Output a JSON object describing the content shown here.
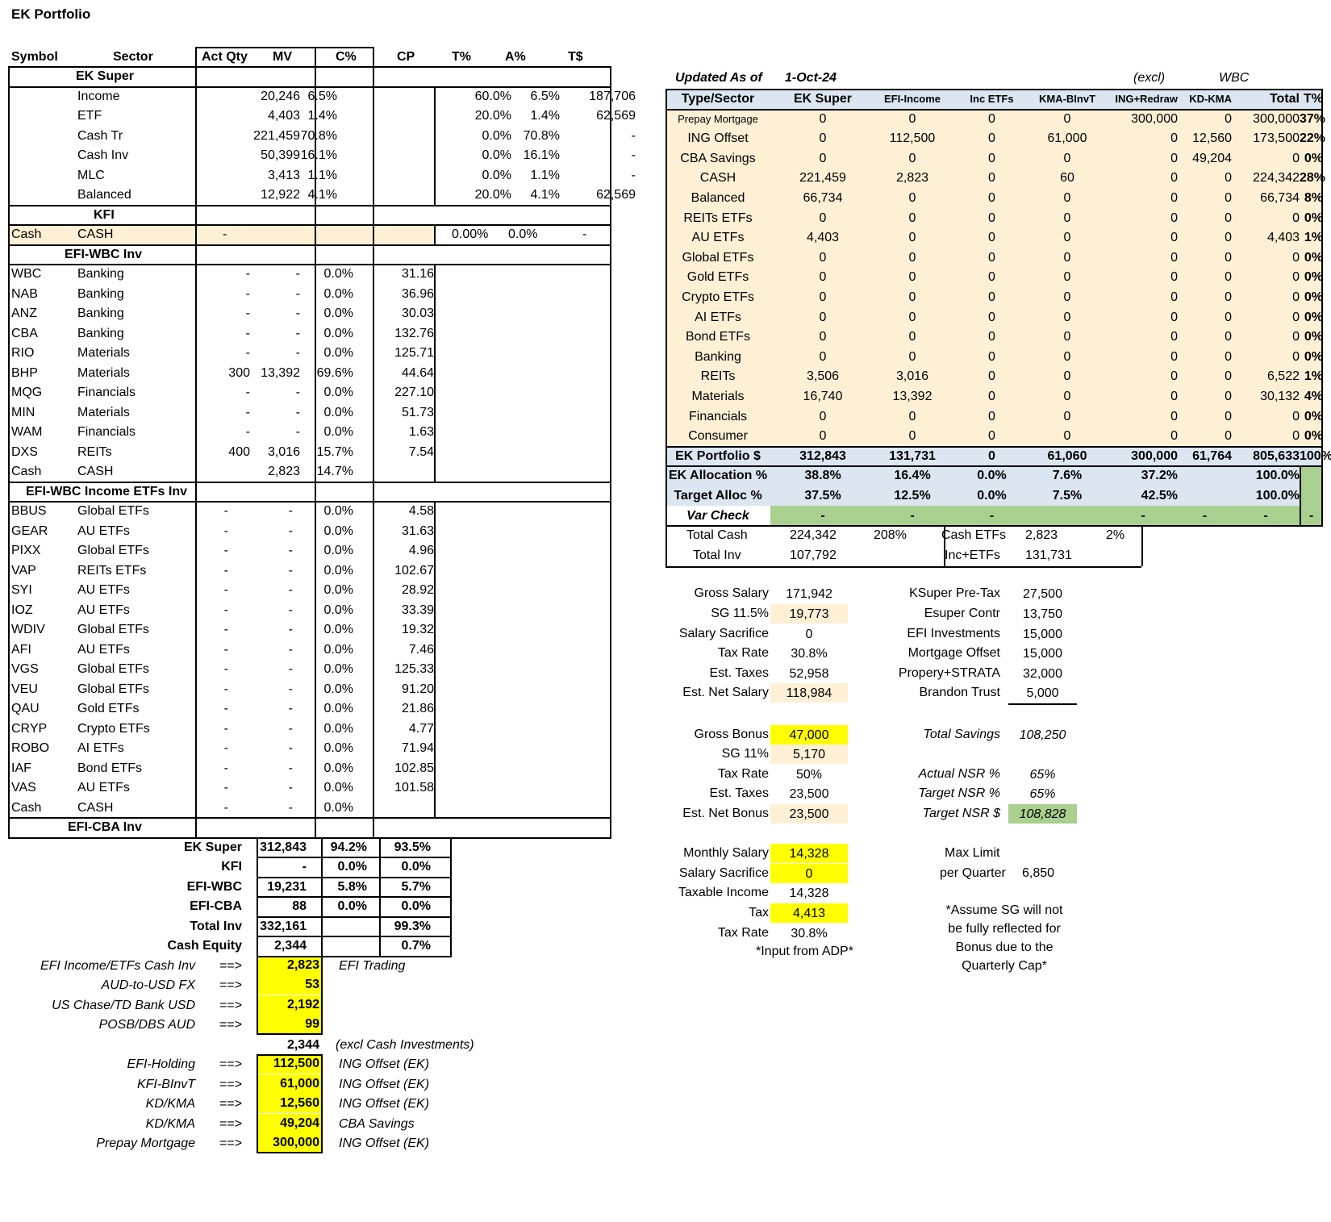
{
  "title": "EK Portfolio",
  "left_headers": [
    "Symbol",
    "Sector",
    "Act Qty",
    "MV",
    "C%",
    "CP",
    "T%",
    "A%",
    "T$"
  ],
  "super": {
    "title": "EK Super",
    "rows": [
      {
        "sector": "Income",
        "mv": "20,246",
        "cp": "6.5%",
        "tp": "60.0%",
        "ap": "6.5%",
        "ts": "187,706"
      },
      {
        "sector": "ETF",
        "mv": "4,403",
        "cp": "1.4%",
        "tp": "20.0%",
        "ap": "1.4%",
        "ts": "62,569"
      },
      {
        "sector": "Cash Tr",
        "mv": "221,459",
        "cp": "70.8%",
        "tp": "0.0%",
        "ap": "70.8%",
        "ts": "-"
      },
      {
        "sector": "Cash Inv",
        "mv": "50,399",
        "cp": "16.1%",
        "tp": "0.0%",
        "ap": "16.1%",
        "ts": "-"
      },
      {
        "sector": "MLC",
        "mv": "3,413",
        "cp": "1.1%",
        "tp": "0.0%",
        "ap": "1.1%",
        "ts": "-"
      },
      {
        "sector": "Balanced",
        "mv": "12,922",
        "cp": "4.1%",
        "tp": "20.0%",
        "ap": "4.1%",
        "ts": "62,569"
      }
    ]
  },
  "kfi": {
    "title": "KFI",
    "row": {
      "sym": "Cash",
      "sector": "CASH",
      "qty": "-",
      "tp": "0.00%",
      "ap": "0.0%",
      "ts": "-"
    }
  },
  "wbc": {
    "title": "EFI-WBC Inv",
    "rows": [
      {
        "sym": "WBC",
        "sector": "Banking",
        "qty": "-",
        "mv": "-",
        "cpp": "0.0%",
        "cp": "31.16"
      },
      {
        "sym": "NAB",
        "sector": "Banking",
        "qty": "-",
        "mv": "-",
        "cpp": "0.0%",
        "cp": "36.96"
      },
      {
        "sym": "ANZ",
        "sector": "Banking",
        "qty": "-",
        "mv": "-",
        "cpp": "0.0%",
        "cp": "30.03"
      },
      {
        "sym": "CBA",
        "sector": "Banking",
        "qty": "-",
        "mv": "-",
        "cpp": "0.0%",
        "cp": "132.76"
      },
      {
        "sym": "RIO",
        "sector": "Materials",
        "qty": "-",
        "mv": "-",
        "cpp": "0.0%",
        "cp": "125.71"
      },
      {
        "sym": "BHP",
        "sector": "Materials",
        "qty": "300",
        "mv": "13,392",
        "cpp": "69.6%",
        "cp": "44.64"
      },
      {
        "sym": "MQG",
        "sector": "Financials",
        "qty": "-",
        "mv": "-",
        "cpp": "0.0%",
        "cp": "227.10"
      },
      {
        "sym": "MIN",
        "sector": "Materials",
        "qty": "-",
        "mv": "-",
        "cpp": "0.0%",
        "cp": "51.73"
      },
      {
        "sym": "WAM",
        "sector": "Financials",
        "qty": "-",
        "mv": "-",
        "cpp": "0.0%",
        "cp": "1.63"
      },
      {
        "sym": "DXS",
        "sector": "REITs",
        "qty": "400",
        "mv": "3,016",
        "cpp": "15.7%",
        "cp": "7.54"
      },
      {
        "sym": "Cash",
        "sector": "CASH",
        "qty": "",
        "mv": "2,823",
        "cpp": "14.7%",
        "cp": ""
      }
    ]
  },
  "etf": {
    "title": "EFI-WBC Income ETFs Inv",
    "rows": [
      {
        "sym": "BBUS",
        "sector": "Global ETFs",
        "cp": "4.58"
      },
      {
        "sym": "GEAR",
        "sector": "AU ETFs",
        "cp": "31.63"
      },
      {
        "sym": "PIXX",
        "sector": "Global ETFs",
        "cp": "4.96"
      },
      {
        "sym": "VAP",
        "sector": "REITs ETFs",
        "cp": "102.67"
      },
      {
        "sym": "SYI",
        "sector": "AU ETFs",
        "cp": "28.92"
      },
      {
        "sym": "IOZ",
        "sector": "AU ETFs",
        "cp": "33.39"
      },
      {
        "sym": "WDIV",
        "sector": "Global ETFs",
        "cp": "19.32"
      },
      {
        "sym": "AFI",
        "sector": "AU ETFs",
        "cp": "7.46"
      },
      {
        "sym": "VGS",
        "sector": "Global ETFs",
        "cp": "125.33"
      },
      {
        "sym": "VEU",
        "sector": "Global ETFs",
        "cp": "91.20"
      },
      {
        "sym": "QAU",
        "sector": "Gold ETFs",
        "cp": "21.86"
      },
      {
        "sym": "CRYP",
        "sector": "Crypto ETFs",
        "cp": "4.77"
      },
      {
        "sym": "ROBO",
        "sector": "AI ETFs",
        "cp": "71.94"
      },
      {
        "sym": "IAF",
        "sector": "Bond ETFs",
        "cp": "102.85"
      },
      {
        "sym": "VAS",
        "sector": "AU ETFs",
        "cp": "101.58"
      },
      {
        "sym": "Cash",
        "sector": "CASH",
        "cp": ""
      }
    ],
    "dash": "-",
    "zero": "0.0%"
  },
  "cba": {
    "title": "EFI-CBA Inv"
  },
  "summary": [
    {
      "label": "EK Super",
      "v": "312,843",
      "p1": "94.2%",
      "p2": "93.5%"
    },
    {
      "label": "KFI",
      "v": "-",
      "p1": "0.0%",
      "p2": "0.0%"
    },
    {
      "label": "EFI-WBC",
      "v": "19,231",
      "p1": "5.8%",
      "p2": "5.7%"
    },
    {
      "label": "EFI-CBA",
      "v": "88",
      "p1": "0.0%",
      "p2": "0.0%"
    },
    {
      "label": "Total Inv",
      "v": "332,161",
      "p1": "",
      "p2": "99.3%"
    },
    {
      "label": "Cash Equity",
      "v": "2,344",
      "p1": "",
      "p2": "0.7%"
    }
  ],
  "cash_items": [
    {
      "label": "EFI Income/ETFs Cash Inv",
      "arrow": "==>",
      "v": "2,823",
      "note": "EFI Trading"
    },
    {
      "label": "AUD-to-USD FX",
      "arrow": "==>",
      "v": "53",
      "note": ""
    },
    {
      "label": "US Chase/TD Bank USD",
      "arrow": "==>",
      "v": "2,192",
      "note": ""
    },
    {
      "label": "POSB/DBS AUD",
      "arrow": "==>",
      "v": "99",
      "note": ""
    }
  ],
  "cash_total": {
    "v": "2,344",
    "note": "(excl Cash Investments)"
  },
  "offset_items": [
    {
      "label": "EFI-Holding",
      "arrow": "==>",
      "v": "112,500",
      "note": "ING Offset (EK)"
    },
    {
      "label": "KFI-BInvT",
      "arrow": "==>",
      "v": "61,000",
      "note": "ING Offset (EK)"
    },
    {
      "label": "KD/KMA",
      "arrow": "==>",
      "v": "12,560",
      "note": "ING Offset (EK)"
    },
    {
      "label": "KD/KMA",
      "arrow": "==>",
      "v": "49,204",
      "note": "CBA Savings"
    },
    {
      "label": "Prepay Mortgage",
      "arrow": "==>",
      "v": "300,000",
      "note": "ING Offset (EK)"
    }
  ],
  "right": {
    "updated_label": "Updated As of",
    "updated_date": "1-Oct-24",
    "excl": "(excl)",
    "wbc": "WBC",
    "headers": [
      "Type/Sector",
      "EK Super",
      "EFI-Income",
      "Inc ETFs",
      "KMA-BInvT",
      "ING+Redraw",
      "KD-KMA",
      "Total",
      "T%"
    ],
    "rows": [
      [
        "Prepay Mortgage",
        "0",
        "0",
        "0",
        "0",
        "300,000",
        "0",
        "300,000",
        "37%"
      ],
      [
        "ING Offset",
        "0",
        "112,500",
        "0",
        "61,000",
        "0",
        "12,560",
        "173,500",
        "22%"
      ],
      [
        "CBA Savings",
        "0",
        "0",
        "0",
        "0",
        "0",
        "49,204",
        "0",
        "0%"
      ],
      [
        "CASH",
        "221,459",
        "2,823",
        "0",
        "60",
        "0",
        "0",
        "224,342",
        "28%"
      ],
      [
        "Balanced",
        "66,734",
        "0",
        "0",
        "0",
        "0",
        "0",
        "66,734",
        "8%"
      ],
      [
        "REITs ETFs",
        "0",
        "0",
        "0",
        "0",
        "0",
        "0",
        "0",
        "0%"
      ],
      [
        "AU ETFs",
        "4,403",
        "0",
        "0",
        "0",
        "0",
        "0",
        "4,403",
        "1%"
      ],
      [
        "Global ETFs",
        "0",
        "0",
        "0",
        "0",
        "0",
        "0",
        "0",
        "0%"
      ],
      [
        "Gold ETFs",
        "0",
        "0",
        "0",
        "0",
        "0",
        "0",
        "0",
        "0%"
      ],
      [
        "Crypto ETFs",
        "0",
        "0",
        "0",
        "0",
        "0",
        "0",
        "0",
        "0%"
      ],
      [
        "AI ETFs",
        "0",
        "0",
        "0",
        "0",
        "0",
        "0",
        "0",
        "0%"
      ],
      [
        "Bond ETFs",
        "0",
        "0",
        "0",
        "0",
        "0",
        "0",
        "0",
        "0%"
      ],
      [
        "Banking",
        "0",
        "0",
        "0",
        "0",
        "0",
        "0",
        "0",
        "0%"
      ],
      [
        "REITs",
        "3,506",
        "3,016",
        "0",
        "0",
        "0",
        "0",
        "6,522",
        "1%"
      ],
      [
        "Materials",
        "16,740",
        "13,392",
        "0",
        "0",
        "0",
        "0",
        "30,132",
        "4%"
      ],
      [
        "Financials",
        "0",
        "0",
        "0",
        "0",
        "0",
        "0",
        "0",
        "0%"
      ],
      [
        "Consumer",
        "0",
        "0",
        "0",
        "0",
        "0",
        "0",
        "0",
        "0%"
      ]
    ],
    "portfolio": [
      "EK Portfolio $",
      "312,843",
      "131,731",
      "0",
      "61,060",
      "300,000",
      "61,764",
      "805,633",
      "100%"
    ],
    "allocation": [
      "EK Allocation %",
      "38.8%",
      "16.4%",
      "0.0%",
      "7.6%",
      "37.2%",
      "",
      "100.0%",
      ""
    ],
    "target": [
      "Target Alloc %",
      "37.5%",
      "12.5%",
      "0.0%",
      "7.5%",
      "42.5%",
      "",
      "100.0%",
      ""
    ],
    "var": [
      "Var Check",
      "-",
      "-",
      "-",
      "",
      "-",
      "-",
      "-",
      "-"
    ],
    "totals": {
      "cash_label": "Total Cash",
      "cash_v": "224,342",
      "cash_p": "208%",
      "etf_label": "Cash ETFs",
      "etf_v": "2,823",
      "etf_p": "2%",
      "inv_label": "Total Inv",
      "inv_v": "107,792",
      "inc_label": "Inc+ETFs",
      "inc_v": "131,731"
    }
  },
  "salary": [
    {
      "label": "Gross Salary",
      "v": "171,942",
      "hl": ""
    },
    {
      "label": "SG 11.5%",
      "v": "19,773",
      "hl": "cream"
    },
    {
      "label": "Salary Sacrifice",
      "v": "0",
      "hl": ""
    },
    {
      "label": "Tax Rate",
      "v": "30.8%",
      "hl": ""
    },
    {
      "label": "Est. Taxes",
      "v": "52,958",
      "hl": ""
    },
    {
      "label": "Est. Net Salary",
      "v": "118,984",
      "hl": "cream"
    }
  ],
  "savings": [
    {
      "label": "KSuper Pre-Tax",
      "v": "27,500"
    },
    {
      "label": "Esuper Contr",
      "v": "13,750"
    },
    {
      "label": "EFI Investments",
      "v": "15,000"
    },
    {
      "label": "Mortgage Offset",
      "v": "15,000"
    },
    {
      "label": "Propery+STRATA",
      "v": "32,000"
    },
    {
      "label": "Brandon Trust",
      "v": "5,000"
    }
  ],
  "bonus": [
    {
      "label": "Gross Bonus",
      "v": "47,000",
      "hl": "yel"
    },
    {
      "label": "SG 11%",
      "v": "5,170",
      "hl": "cream"
    },
    {
      "label": "Tax Rate",
      "v": "50%",
      "hl": ""
    },
    {
      "label": "Est. Taxes",
      "v": "23,500",
      "hl": ""
    },
    {
      "label": "Est. Net Bonus",
      "v": "23,500",
      "hl": "cream"
    }
  ],
  "nsr": [
    {
      "label": "Total Savings",
      "v": "108,250",
      "hl": ""
    },
    {
      "label": "",
      "v": "",
      "hl": ""
    },
    {
      "label": "Actual NSR %",
      "v": "65%",
      "hl": ""
    },
    {
      "label": "Target NSR %",
      "v": "65%",
      "hl": ""
    },
    {
      "label": "Target NSR $",
      "v": "108,828",
      "hl": "grn"
    }
  ],
  "monthly": [
    {
      "label": "Monthly Salary",
      "v": "14,328",
      "hl": "yel"
    },
    {
      "label": "Salary Sacrifice",
      "v": "0",
      "hl": "yel"
    },
    {
      "label": "Taxable Income",
      "v": "14,328",
      "hl": ""
    },
    {
      "label": "Tax",
      "v": "4,413",
      "hl": "yel"
    },
    {
      "label": "Tax Rate",
      "v": "30.8%",
      "hl": ""
    }
  ],
  "adp_note": "*Input from ADP*",
  "max_limit": {
    "l1": "Max Limit",
    "l2": "per Quarter",
    "v": "6,850"
  },
  "assume_note": [
    "*Assume SG will not",
    "be fully reflected for",
    "Bonus due to the",
    "Quarterly Cap*"
  ]
}
